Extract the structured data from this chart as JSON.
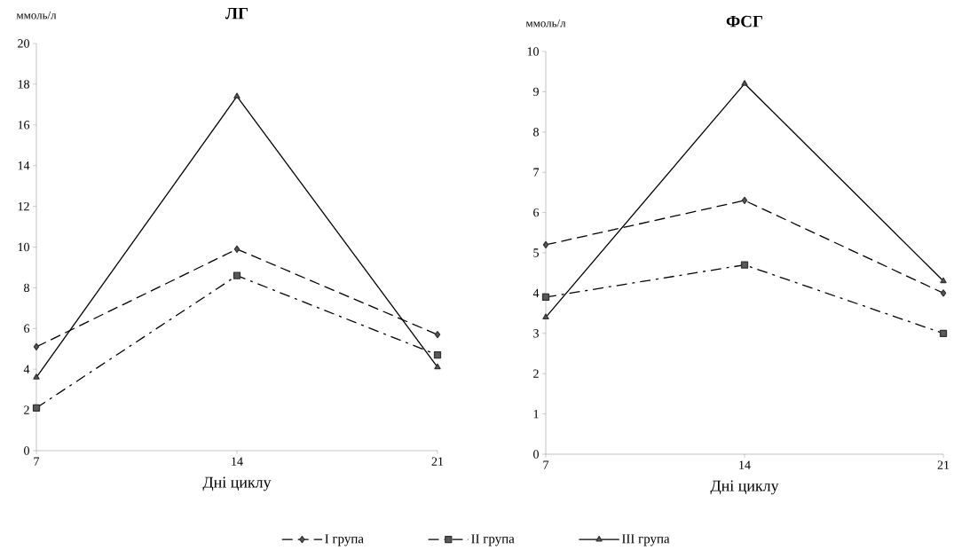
{
  "chart_data": [
    {
      "type": "line",
      "title": "ЛГ",
      "ylabel": "ммоль/л",
      "xlabel": "Дні циклу",
      "x": [
        7,
        14,
        21
      ],
      "xlim": [
        7,
        21
      ],
      "xticks": [
        7,
        14,
        21
      ],
      "ylim": [
        0,
        20
      ],
      "yticks": [
        0,
        2,
        4,
        6,
        8,
        10,
        12,
        14,
        16,
        18,
        20
      ],
      "grid": false,
      "legend": "bottom",
      "series": [
        {
          "name": "I група",
          "color": "#000000",
          "values": [
            5.1,
            9.9,
            5.7
          ],
          "line_style": "dashed",
          "marker": "diamond"
        },
        {
          "name": "II група",
          "color": "#000000",
          "values": [
            2.1,
            8.6,
            4.7
          ],
          "line_style": "dashdot",
          "marker": "square"
        },
        {
          "name": "III група",
          "color": "#000000",
          "values": [
            3.6,
            17.4,
            4.1
          ],
          "line_style": "solid",
          "marker": "triangle"
        }
      ]
    },
    {
      "type": "line",
      "title": "ФСГ",
      "ylabel": "ммоль/л",
      "xlabel": "Дні циклу",
      "x": [
        7,
        14,
        21
      ],
      "xlim": [
        7,
        21
      ],
      "xticks": [
        7,
        14,
        21
      ],
      "ylim": [
        0,
        10
      ],
      "yticks": [
        0,
        1,
        2,
        3,
        4,
        5,
        6,
        7,
        8,
        9,
        10
      ],
      "grid": false,
      "series": [
        {
          "color": "#000000",
          "values": [
            5.2,
            6.3,
            4.0
          ],
          "line_style": "dashed",
          "marker": "diamond"
        },
        {
          "color": "#000000",
          "values": [
            3.9,
            4.7,
            3.0
          ],
          "line_style": "dashdot",
          "marker": "square"
        },
        {
          "color": "#000000",
          "values": [
            3.4,
            9.2,
            4.3
          ],
          "line_style": "solid",
          "marker": "triangle"
        }
      ]
    }
  ]
}
